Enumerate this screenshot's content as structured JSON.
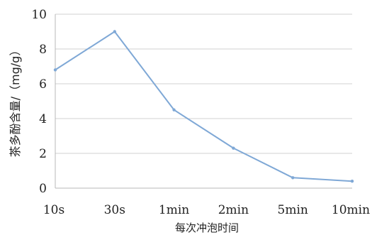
{
  "chart_data": {
    "type": "line",
    "title": "",
    "xlabel": "每次冲泡时间",
    "ylabel": "茶多酚含量/（mg/g）",
    "categories": [
      "10s",
      "30s",
      "1min",
      "2min",
      "5min",
      "10min"
    ],
    "series": [
      {
        "values": [
          6.8,
          9.0,
          4.5,
          2.3,
          0.6,
          0.4
        ],
        "color": "#7fa8d6"
      }
    ],
    "ylim": [
      0,
      10
    ],
    "yticks": [
      "0",
      "2",
      "4",
      "6",
      "8",
      "10"
    ],
    "grid": true,
    "gridColor": "#d0d0d0",
    "axisColor": "#b8b8b8",
    "legend": "none"
  }
}
